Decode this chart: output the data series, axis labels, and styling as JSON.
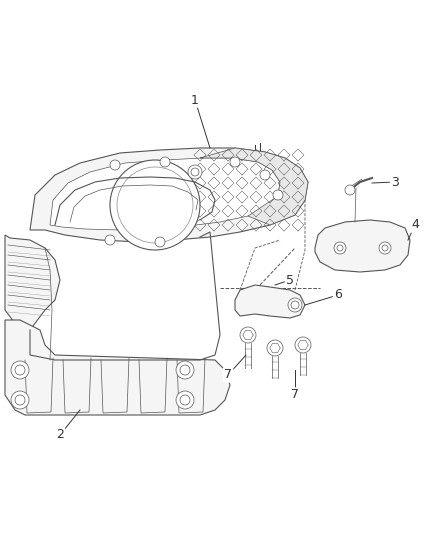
{
  "background_color": "#ffffff",
  "line_color": "#555555",
  "light_line_color": "#888888",
  "callout_color": "#333333",
  "figsize": [
    4.38,
    5.33
  ],
  "dpi": 100,
  "mesh_fill": "#e8e8e8",
  "body_fill": "#f5f5f5"
}
